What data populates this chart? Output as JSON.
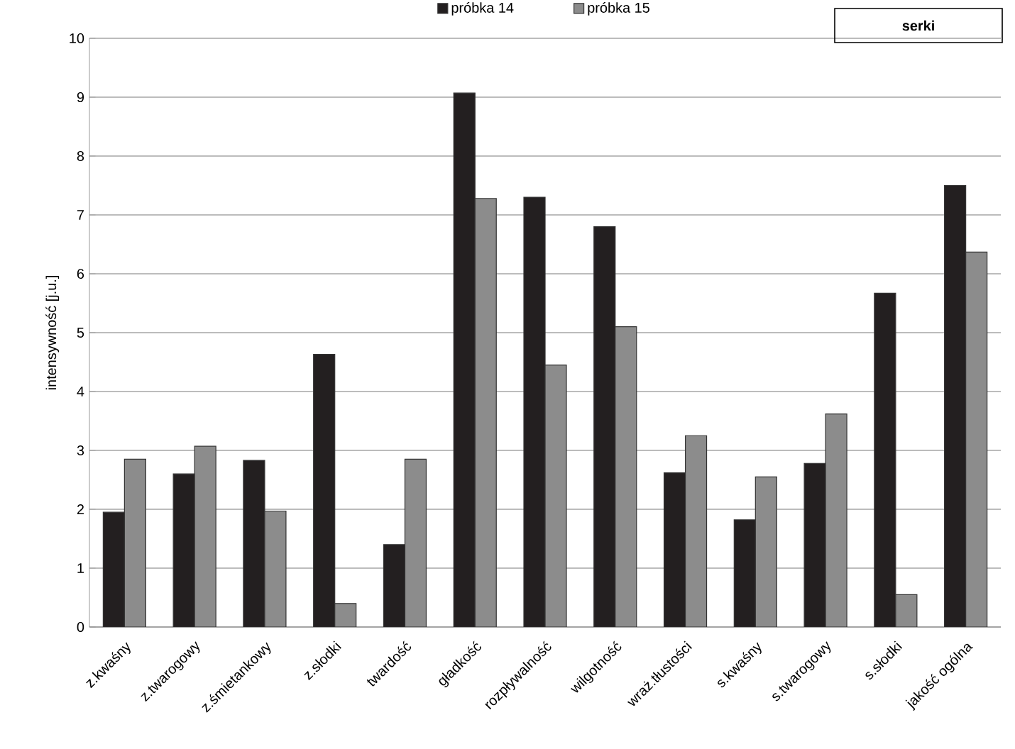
{
  "chart_data": {
    "type": "bar",
    "title": "serki",
    "ylabel": "intensywność [j.u.]",
    "categories": [
      "z.kwaśny",
      "z.twarogowy",
      "z.śmietankowy",
      "z.słodki",
      "twardość",
      "gładkość",
      "rozpływalność",
      "wilgotność",
      "wraż.tłustości",
      "s.kwaśny",
      "s.twarogowy",
      "s.słodki",
      "jakość ogólna"
    ],
    "series": [
      {
        "name": "próbka 14",
        "color": "#231f20",
        "values": [
          1.95,
          2.6,
          2.83,
          4.63,
          1.4,
          9.07,
          7.3,
          6.8,
          2.62,
          1.82,
          2.78,
          5.67,
          7.5
        ]
      },
      {
        "name": "próbka 15",
        "color": "#8c8c8c",
        "values": [
          2.85,
          3.07,
          1.97,
          0.4,
          2.85,
          7.28,
          4.45,
          5.1,
          3.25,
          2.55,
          3.62,
          0.55,
          6.37
        ]
      }
    ],
    "ylim": [
      0,
      10
    ],
    "yticks": [
      0,
      1,
      2,
      3,
      4,
      5,
      6,
      7,
      8,
      9,
      10
    ],
    "grid": "y",
    "legend": "top"
  }
}
